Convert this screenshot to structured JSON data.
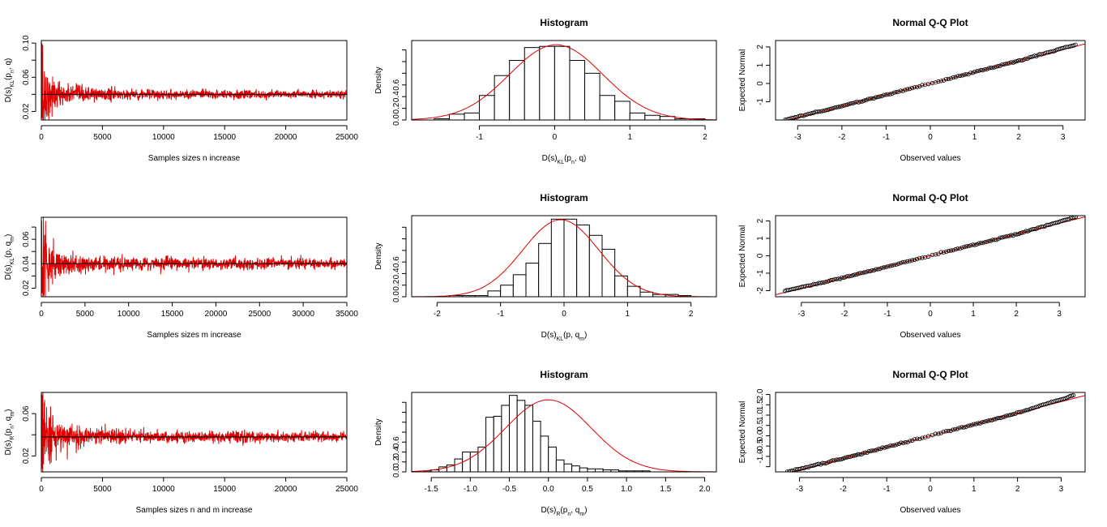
{
  "figure": {
    "colors": {
      "series": "#e00000",
      "axis": "#000000",
      "reference_line": "#000000",
      "background": "#ffffff"
    }
  },
  "chart_data": [
    {
      "id": "r1c1",
      "type": "line",
      "title": "",
      "xlabel": "Samples sizes n increase",
      "ylabel": {
        "main": "D(s)",
        "sub": "KL",
        "tail": "(p",
        "sub2": "n",
        "end": ",  q)"
      },
      "xlim": [
        0,
        25000
      ],
      "ylim": [
        0.01,
        0.103
      ],
      "xticks": [
        0,
        5000,
        10000,
        15000,
        20000,
        25000
      ],
      "yticks": [
        0.02,
        0.04,
        0.06,
        0.08,
        0.1
      ],
      "ytick_labels": [
        "0.02",
        "",
        "0.06",
        "",
        "0.10"
      ],
      "hline": 0.04,
      "series": [
        {
          "name": "D(s)KL(pn, q)",
          "color": "#e00000",
          "n_max": 25000,
          "center": 0.04,
          "start_peak": 0.1,
          "start_min": 0.012
        }
      ]
    },
    {
      "id": "r1c2",
      "type": "histogram",
      "title": "Histogram",
      "xlabel": {
        "main": "D(s)",
        "sub": "KL",
        "tail": "(p",
        "sub2": "n",
        "end": ",  q)"
      },
      "ylabel": "Density",
      "xlim": [
        -1.9,
        2.15
      ],
      "ylim": [
        0,
        0.68
      ],
      "xticks": [
        -1,
        0,
        1,
        2
      ],
      "xtick_labels": [
        "-1",
        "0",
        "1",
        "2"
      ],
      "yticks": [
        0.0,
        0.1,
        0.2,
        0.3,
        0.4,
        0.5,
        0.6
      ],
      "ytick_labels": [
        "0.0",
        "0.2",
        "0.4",
        "0.6"
      ],
      "bin_start": -1.8,
      "bin_width": 0.2,
      "values": [
        0.0,
        0.01,
        0.05,
        0.06,
        0.21,
        0.38,
        0.51,
        0.62,
        0.63,
        0.63,
        0.51,
        0.4,
        0.21,
        0.16,
        0.06,
        0.04,
        0.03,
        0.01,
        0.01
      ],
      "density_curve": {
        "mean": 0.02,
        "sd": 0.62
      }
    },
    {
      "id": "r1c3",
      "type": "scatter",
      "title": "Normal Q-Q Plot",
      "xlabel": "Observed values",
      "ylabel": "Expected Normal",
      "xlim": [
        -3.5,
        3.5
      ],
      "ylim": [
        -2.0,
        2.35
      ],
      "xticks": [
        -3,
        -2,
        -1,
        0,
        1,
        2,
        3
      ],
      "xtick_labels": [
        "-3",
        "-2",
        "-1",
        "0",
        "1",
        "2",
        "3"
      ],
      "yticks": [
        -1,
        0,
        1,
        2
      ],
      "ytick_labels": [
        "-1",
        "0",
        "1",
        "2"
      ],
      "reference_line": {
        "slope": 0.62,
        "intercept": 0.0
      },
      "qq": {
        "n_points": 150,
        "x_min": -3.3,
        "x_max": 3.3,
        "slope": 0.62,
        "upper_tail_bend": 0.07,
        "lower_tail_bend": 0.04
      }
    },
    {
      "id": "r2c1",
      "type": "line",
      "title": "",
      "xlabel": "Samples sizes m increase",
      "ylabel": {
        "main": "D(s)",
        "sub": "KL",
        "tail": "(p,  q",
        "sub2": "m",
        "end": ")"
      },
      "xlim": [
        0,
        35000
      ],
      "ylim": [
        0.013,
        0.078
      ],
      "xticks": [
        0,
        5000,
        10000,
        15000,
        20000,
        25000,
        30000,
        35000
      ],
      "yticks": [
        0.02,
        0.03,
        0.04,
        0.05,
        0.06,
        0.07
      ],
      "ytick_labels": [
        "0.02",
        "",
        "0.04",
        "",
        "0.06",
        ""
      ],
      "hline": 0.04,
      "series": [
        {
          "name": "D(s)KL(p, qm)",
          "color": "#e00000",
          "n_max": 35000,
          "center": 0.04,
          "start_peak": 0.075,
          "start_min": 0.016
        }
      ]
    },
    {
      "id": "r2c2",
      "type": "histogram",
      "title": "Histogram",
      "xlabel": {
        "main": "D(s)",
        "sub": "KL",
        "tail": "(p,  q",
        "sub2": "m",
        "end": ")"
      },
      "ylabel": "Density",
      "xlim": [
        -2.4,
        2.4
      ],
      "ylim": [
        0,
        0.7
      ],
      "xticks": [
        -2,
        -1,
        0,
        1,
        2
      ],
      "xtick_labels": [
        "-2",
        "-1",
        "0",
        "1",
        "2"
      ],
      "yticks": [
        0.0,
        0.1,
        0.2,
        0.3,
        0.4,
        0.5,
        0.6
      ],
      "ytick_labels": [
        "0.0",
        "0.2",
        "0.4",
        "0.6"
      ],
      "bin_start": -2.2,
      "bin_width": 0.2,
      "values": [
        0.0,
        0.0,
        0.01,
        0.01,
        0.01,
        0.05,
        0.1,
        0.19,
        0.29,
        0.46,
        0.67,
        0.67,
        0.62,
        0.53,
        0.41,
        0.18,
        0.09,
        0.04,
        0.02,
        0.02,
        0.01,
        0.0
      ],
      "density_curve": {
        "mean": -0.05,
        "sd": 0.6
      }
    },
    {
      "id": "r2c3",
      "type": "scatter",
      "title": "Normal Q-Q Plot",
      "xlabel": "Observed values",
      "ylabel": "Expected Normal",
      "xlim": [
        -3.6,
        3.6
      ],
      "ylim": [
        -2.35,
        2.3
      ],
      "xticks": [
        -3,
        -2,
        -1,
        0,
        1,
        2,
        3
      ],
      "xtick_labels": [
        "-3",
        "-2",
        "-1",
        "0",
        "1",
        "2",
        "3"
      ],
      "yticks": [
        -2,
        -1,
        0,
        1,
        2
      ],
      "ytick_labels": [
        "-2",
        "-1",
        "0",
        "1",
        "2"
      ],
      "reference_line": {
        "slope": 0.62,
        "intercept": 0.0
      },
      "qq": {
        "n_points": 150,
        "x_min": -3.4,
        "x_max": 3.4,
        "slope": 0.62,
        "upper_tail_bend": 0.1,
        "lower_tail_bend": 0.06
      }
    },
    {
      "id": "r3c1",
      "type": "line",
      "title": "",
      "xlabel": "Samples sizes n and m increase",
      "ylabel": {
        "main": "D(s)",
        "sub": "R",
        "tail": "(p",
        "sub2": "n",
        "end": ",  q",
        "sub3": "m",
        "end2": ")"
      },
      "xlim": [
        0,
        25000
      ],
      "ylim": [
        0.005,
        0.08
      ],
      "xticks": [
        0,
        5000,
        10000,
        15000,
        20000,
        25000
      ],
      "yticks": [
        0.02,
        0.04,
        0.06
      ],
      "ytick_labels": [
        "0.02",
        "",
        "0.06"
      ],
      "hline": 0.038,
      "series": [
        {
          "name": "D(s)R(pn, qm)",
          "color": "#e00000",
          "n_max": 25000,
          "center": 0.038,
          "start_peak": 0.078,
          "start_min": 0.008
        }
      ]
    },
    {
      "id": "r3c2",
      "type": "histogram",
      "title": "Histogram",
      "xlabel": {
        "main": "D(s)",
        "sub": "R",
        "tail": "(p",
        "sub2": "n",
        "end": ",  q",
        "sub3": "m",
        "end2": ")"
      },
      "ylabel": "Density",
      "xlim": [
        -1.75,
        2.15
      ],
      "ylim": [
        0,
        0.8
      ],
      "xticks": [
        -1.5,
        -1.0,
        -0.5,
        0.0,
        0.5,
        1.0,
        1.5,
        2.0
      ],
      "xtick_labels": [
        "-1.5",
        "-1.0",
        "-0.5",
        "0.0",
        "0.5",
        "1.0",
        "1.5",
        "2.0"
      ],
      "yticks": [
        0.0,
        0.1,
        0.2,
        0.3,
        0.4,
        0.5,
        0.6,
        0.7
      ],
      "ytick_labels": [
        "0.0",
        "0.2",
        "0.4",
        "0.6"
      ],
      "bin_start": -1.6,
      "bin_width": 0.1,
      "values": [
        0.01,
        0.02,
        0.05,
        0.07,
        0.13,
        0.2,
        0.2,
        0.25,
        0.55,
        0.56,
        0.67,
        0.77,
        0.72,
        0.67,
        0.51,
        0.36,
        0.25,
        0.12,
        0.08,
        0.06,
        0.04,
        0.03,
        0.03,
        0.02,
        0.02,
        0.01,
        0.01,
        0.01,
        0.01,
        0.0,
        0.0,
        0.0,
        0.0,
        0.0,
        0.0,
        0.0,
        0.0
      ],
      "density_curve": {
        "mean": 0.0,
        "sd": 0.55
      }
    },
    {
      "id": "r3c3",
      "type": "scatter",
      "title": "Normal Q-Q Plot",
      "xlabel": "Observed values",
      "ylabel": "Expected Normal",
      "xlim": [
        -3.55,
        3.55
      ],
      "ylim": [
        -1.75,
        2.1
      ],
      "xticks": [
        -3,
        -2,
        -1,
        0,
        1,
        2,
        3
      ],
      "xtick_labels": [
        "-3",
        "-2",
        "-1",
        "0",
        "1",
        "2",
        "3"
      ],
      "yticks": [
        -1.5,
        -1.0,
        -0.5,
        0.0,
        0.5,
        1.0,
        1.5,
        2.0
      ],
      "ytick_labels": [
        "",
        "-1.0",
        "-0.5",
        "0.0",
        "0.5",
        "1.0",
        "1.5",
        "2.0"
      ],
      "reference_line": {
        "slope": 0.55,
        "intercept": 0.0
      },
      "qq": {
        "n_points": 150,
        "x_min": -3.3,
        "x_max": 3.3,
        "slope": 0.55,
        "upper_tail_bend": 0.12,
        "lower_tail_bend": 0.04
      }
    }
  ]
}
